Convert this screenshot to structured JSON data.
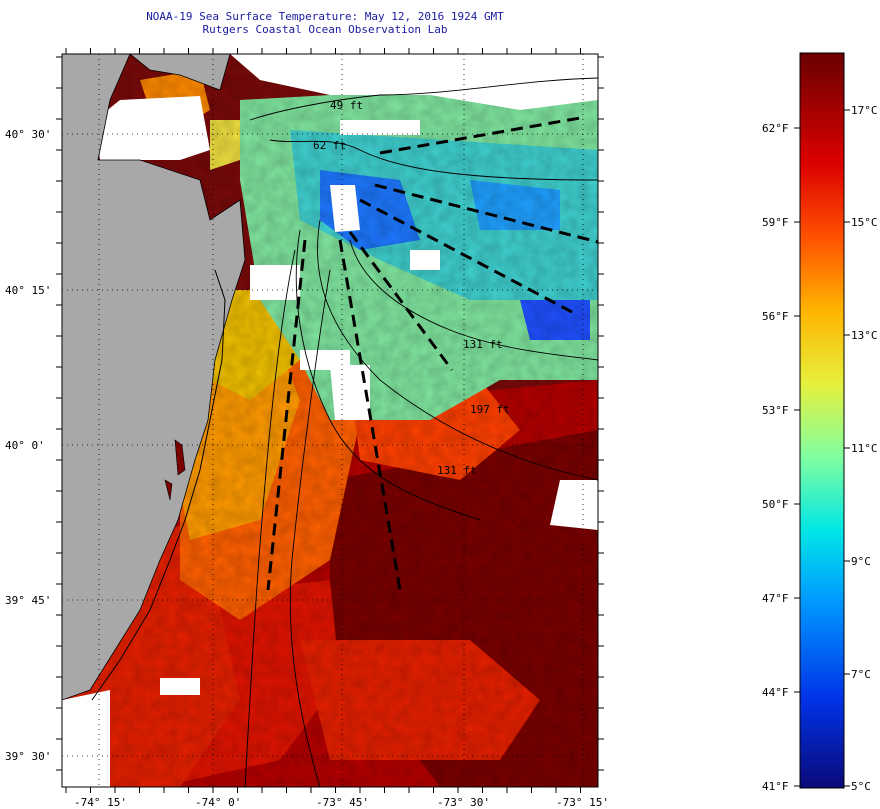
{
  "header": {
    "title_line1": "NOAA-19 Sea Surface Temperature:  May 12, 2016 1924 GMT",
    "title_line2": "Rutgers Coastal Ocean Observation Lab"
  },
  "map": {
    "lat_labels": [
      "40° 30'",
      "40° 15'",
      "40° 0'",
      "39° 45'",
      "39° 30'"
    ],
    "lon_labels": [
      "-74° 15'",
      "-74° 0'",
      "-73° 45'",
      "-73° 30'",
      "-73° 15'"
    ],
    "contour_labels": [
      "49 ft",
      "62 ft",
      "131 ft",
      "197 ft",
      "131 ft"
    ]
  },
  "colorbar": {
    "fahrenheit_labels": [
      "62°F",
      "59°F",
      "56°F",
      "53°F",
      "50°F",
      "47°F",
      "44°F",
      "41°F"
    ],
    "celsius_labels": [
      "17°C",
      "15°C",
      "13°C",
      "11°C",
      "9°C",
      "7°C",
      "5°C"
    ],
    "colors": [
      "#0a0a78",
      "#0050ff",
      "#00c8ff",
      "#80ffb0",
      "#f0f050",
      "#ffa000",
      "#ff2000",
      "#a00000",
      "#6a0000"
    ]
  }
}
